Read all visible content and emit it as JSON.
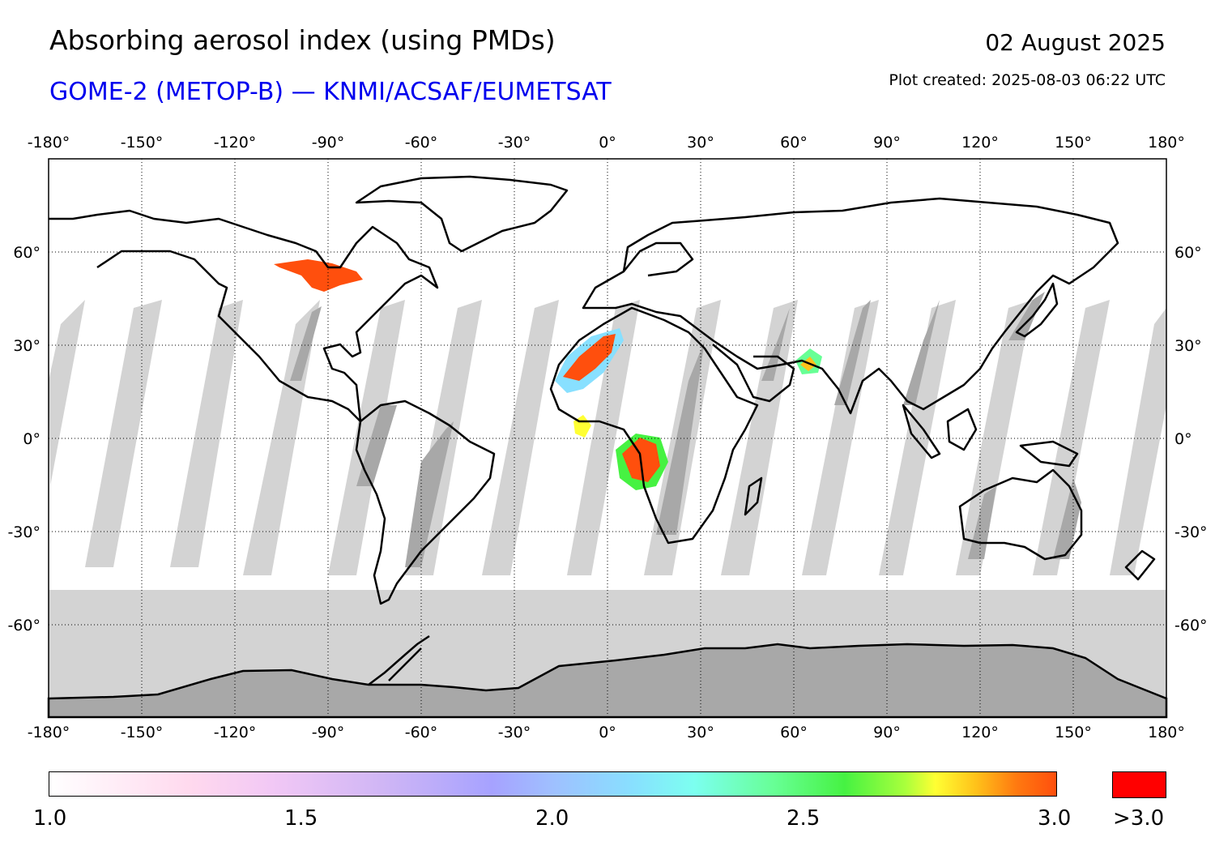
{
  "header": {
    "title": "Absorbing aerosol index (using PMDs)",
    "subtitle": "GOME-2 (METOP-B) — KNMI/ACSAF/EUMETSAT",
    "date": "02 August 2025",
    "plot_created": "Plot created: 2025-08-03 06:22 UTC"
  },
  "map": {
    "lon_ticks": [
      -180,
      -150,
      -120,
      -90,
      -60,
      -30,
      0,
      30,
      60,
      90,
      120,
      150,
      180
    ],
    "lon_labels": [
      "-180°",
      "-150°",
      "-120°",
      "-90°",
      "-60°",
      "-30°",
      "0°",
      "30°",
      "60°",
      "90°",
      "120°",
      "150°",
      "180°"
    ],
    "lat_ticks": [
      60,
      30,
      0,
      -30,
      -60
    ],
    "lat_labels": [
      "60°",
      "30°",
      "0°",
      "-30°",
      "-60°"
    ],
    "colors": {
      "no_data": "#d3d3d3",
      "land_no_data": "#a8a8a8",
      "coast": "#000000",
      "high": "#ff4f0d"
    }
  },
  "colorbar": {
    "tick_labels": [
      "1.0",
      "1.5",
      "2.0",
      "2.5",
      "3.0"
    ],
    "overflow_label": ">3.0",
    "overflow_color": "#ff0000"
  }
}
